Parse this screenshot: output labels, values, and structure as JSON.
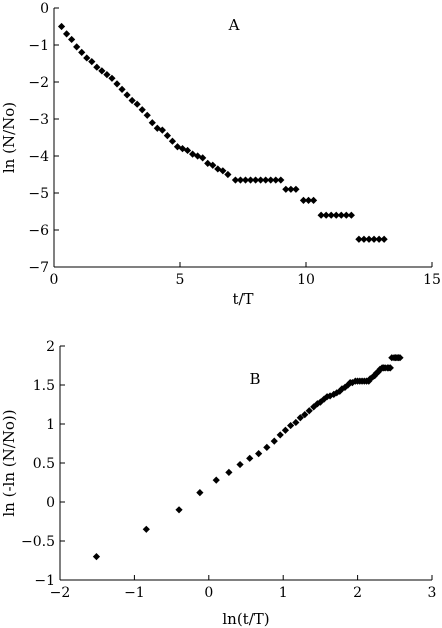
{
  "chart_data": [
    {
      "type": "scatter",
      "panel_label": "A",
      "xlabel": "t/T",
      "ylabel": "ln (N/No)",
      "xlim": [
        0,
        15
      ],
      "ylim": [
        -7,
        0
      ],
      "xticks": [
        0,
        5,
        10,
        15
      ],
      "yticks": [
        0,
        -1,
        -2,
        -3,
        -4,
        -5,
        -6,
        -7
      ],
      "x_tick_labels": [
        "0",
        "5",
        "10",
        "15"
      ],
      "y_tick_labels": [
        "0",
        "−1",
        "−2",
        "−3",
        "−4",
        "−5",
        "−6",
        "−7"
      ],
      "grid": false,
      "marker": "diamond",
      "x": [
        0.3,
        0.5,
        0.7,
        0.9,
        1.1,
        1.3,
        1.5,
        1.7,
        1.9,
        2.1,
        2.3,
        2.5,
        2.7,
        2.9,
        3.1,
        3.3,
        3.5,
        3.7,
        3.9,
        4.1,
        4.3,
        4.5,
        4.7,
        4.9,
        5.1,
        5.3,
        5.5,
        5.7,
        5.9,
        6.1,
        6.3,
        6.5,
        6.7,
        6.9,
        7.2,
        7.4,
        7.6,
        7.8,
        8.0,
        8.2,
        8.4,
        8.6,
        8.8,
        9.0,
        9.2,
        9.4,
        9.6,
        9.9,
        10.1,
        10.3,
        10.6,
        10.8,
        11.0,
        11.2,
        11.4,
        11.6,
        11.8,
        12.1,
        12.3,
        12.5,
        12.7,
        12.9,
        13.1
      ],
      "y": [
        -0.5,
        -0.7,
        -0.85,
        -1.05,
        -1.2,
        -1.35,
        -1.45,
        -1.6,
        -1.7,
        -1.8,
        -1.9,
        -2.05,
        -2.2,
        -2.35,
        -2.5,
        -2.6,
        -2.75,
        -2.9,
        -3.1,
        -3.25,
        -3.3,
        -3.45,
        -3.6,
        -3.75,
        -3.8,
        -3.85,
        -3.95,
        -4.0,
        -4.05,
        -4.2,
        -4.25,
        -4.35,
        -4.4,
        -4.5,
        -4.65,
        -4.65,
        -4.65,
        -4.65,
        -4.65,
        -4.65,
        -4.65,
        -4.65,
        -4.65,
        -4.65,
        -4.9,
        -4.9,
        -4.9,
        -5.2,
        -5.2,
        -5.2,
        -5.6,
        -5.6,
        -5.6,
        -5.6,
        -5.6,
        -5.6,
        -5.6,
        -6.25,
        -6.25,
        -6.25,
        -6.25,
        -6.25,
        -6.25
      ]
    },
    {
      "type": "scatter",
      "panel_label": "B",
      "xlabel": "ln(t/T)",
      "ylabel": "ln (-ln (N/No))",
      "xlim": [
        -2,
        3
      ],
      "ylim": [
        -1,
        2
      ],
      "xticks": [
        -2,
        -1,
        0,
        1,
        2,
        3
      ],
      "yticks": [
        2,
        1.5,
        1,
        0.5,
        0,
        -0.5,
        -1
      ],
      "x_tick_labels": [
        "−2",
        "−1",
        "0",
        "1",
        "2",
        "3"
      ],
      "y_tick_labels": [
        "2",
        "1.5",
        "1",
        "0.5",
        "0",
        "−0.5",
        "−1"
      ],
      "grid": false,
      "marker": "diamond",
      "x": [
        -1.51,
        -0.84,
        -0.4,
        -0.12,
        0.1,
        0.27,
        0.42,
        0.55,
        0.67,
        0.78,
        0.88,
        0.96,
        1.03,
        1.1,
        1.17,
        1.23,
        1.29,
        1.35,
        1.41,
        1.46,
        1.5,
        1.55,
        1.59,
        1.63,
        1.68,
        1.72,
        1.76,
        1.79,
        1.83,
        1.87,
        1.9,
        1.93,
        1.97,
        2.0,
        2.03,
        2.06,
        2.09,
        2.12,
        2.15,
        2.17,
        2.2,
        2.23,
        2.25,
        2.28,
        2.3,
        2.33,
        2.35,
        2.37,
        2.4,
        2.42,
        2.44,
        2.46,
        2.49,
        2.51,
        2.53,
        2.55,
        2.57
      ],
      "y": [
        -0.7,
        -0.35,
        -0.1,
        0.12,
        0.28,
        0.38,
        0.48,
        0.56,
        0.62,
        0.7,
        0.78,
        0.86,
        0.92,
        0.98,
        1.02,
        1.08,
        1.12,
        1.17,
        1.22,
        1.26,
        1.28,
        1.32,
        1.35,
        1.36,
        1.38,
        1.4,
        1.42,
        1.45,
        1.47,
        1.5,
        1.53,
        1.53,
        1.55,
        1.55,
        1.55,
        1.55,
        1.55,
        1.55,
        1.55,
        1.58,
        1.6,
        1.62,
        1.65,
        1.67,
        1.7,
        1.72,
        1.72,
        1.72,
        1.72,
        1.72,
        1.72,
        1.85,
        1.85,
        1.85,
        1.85,
        1.85,
        1.85
      ]
    }
  ]
}
